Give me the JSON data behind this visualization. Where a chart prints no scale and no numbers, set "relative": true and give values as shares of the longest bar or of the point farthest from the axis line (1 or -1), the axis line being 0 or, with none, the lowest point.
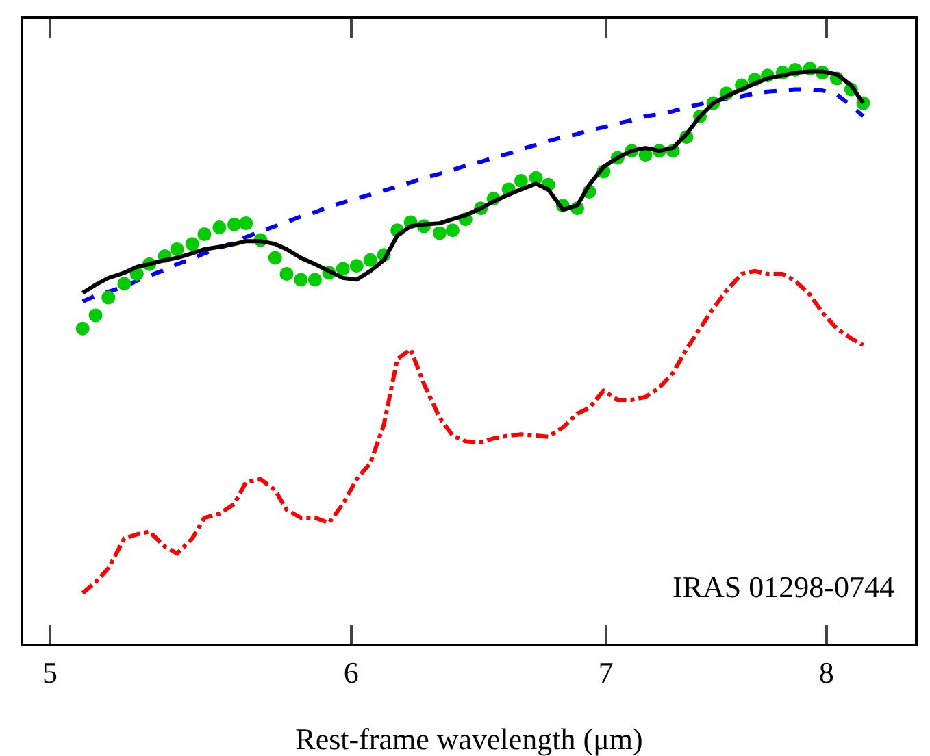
{
  "chart_data": {
    "type": "line",
    "xlabel": "Rest-frame wavelength (μm)",
    "log": "x",
    "relative": true,
    "x": [
      5.1,
      5.14,
      5.18,
      5.23,
      5.27,
      5.31,
      5.36,
      5.4,
      5.45,
      5.49,
      5.54,
      5.59,
      5.63,
      5.68,
      5.73,
      5.77,
      5.82,
      5.87,
      5.92,
      5.97,
      6.02,
      6.07,
      6.12,
      6.17,
      6.22,
      6.27,
      6.33,
      6.38,
      6.43,
      6.49,
      6.54,
      6.6,
      6.65,
      6.71,
      6.76,
      6.82,
      6.88,
      6.93,
      6.99,
      7.05,
      7.11,
      7.17,
      7.23,
      7.29,
      7.35,
      7.41,
      7.47,
      7.53,
      7.6,
      7.66,
      7.72,
      7.79,
      7.85,
      7.92,
      7.98,
      8.05,
      8.12,
      8.18
    ],
    "xlim": [
      4.92,
      8.44
    ],
    "xticks": [
      5,
      6,
      7,
      8
    ],
    "tick_labels": "x",
    "series": [
      {
        "type": "line",
        "color": "#0000ff",
        "line_style": "dashed",
        "marker": "none",
        "values": [
          0.595,
          0.605,
          0.612,
          0.621,
          0.631,
          0.64,
          0.65,
          0.66,
          0.669,
          0.679,
          0.688,
          0.698,
          0.707,
          0.717,
          0.726,
          0.733,
          0.743,
          0.75,
          0.76,
          0.767,
          0.774,
          0.781,
          0.788,
          0.795,
          0.802,
          0.81,
          0.817,
          0.824,
          0.831,
          0.838,
          0.845,
          0.852,
          0.86,
          0.867,
          0.874,
          0.881,
          0.886,
          0.893,
          0.898,
          0.905,
          0.91,
          0.917,
          0.921,
          0.926,
          0.933,
          0.938,
          0.943,
          0.948,
          0.952,
          0.957,
          0.96,
          0.962,
          0.964,
          0.964,
          0.962,
          0.955,
          0.936,
          0.917
        ]
      },
      {
        "type": "line",
        "color": "#ff0000",
        "line_style": "dashdot",
        "marker": "none",
        "values": [
          0.088,
          0.107,
          0.131,
          0.183,
          0.19,
          0.195,
          0.169,
          0.157,
          0.183,
          0.219,
          0.226,
          0.243,
          0.281,
          0.286,
          0.267,
          0.233,
          0.219,
          0.219,
          0.21,
          0.243,
          0.286,
          0.314,
          0.381,
          0.495,
          0.512,
          0.452,
          0.393,
          0.362,
          0.352,
          0.35,
          0.357,
          0.362,
          0.364,
          0.362,
          0.36,
          0.376,
          0.4,
          0.41,
          0.44,
          0.424,
          0.424,
          0.429,
          0.445,
          0.471,
          0.512,
          0.548,
          0.583,
          0.614,
          0.643,
          0.648,
          0.643,
          0.643,
          0.631,
          0.607,
          0.576,
          0.548,
          0.531,
          0.519
        ]
      },
      {
        "type": "scatter",
        "color": "#00cc00",
        "marker": "circle",
        "values": [
          0.548,
          0.571,
          0.602,
          0.626,
          0.643,
          0.66,
          0.674,
          0.686,
          0.695,
          0.712,
          0.724,
          0.729,
          0.731,
          0.702,
          0.671,
          0.643,
          0.633,
          0.633,
          0.645,
          0.652,
          0.657,
          0.667,
          0.676,
          0.719,
          0.733,
          0.726,
          0.714,
          0.719,
          0.738,
          0.757,
          0.774,
          0.79,
          0.805,
          0.81,
          0.798,
          0.762,
          0.757,
          0.786,
          0.821,
          0.845,
          0.857,
          0.85,
          0.857,
          0.857,
          0.881,
          0.917,
          0.94,
          0.957,
          0.971,
          0.981,
          0.988,
          0.993,
          0.998,
          1.0,
          0.993,
          0.983,
          0.964,
          0.94
        ]
      },
      {
        "type": "line",
        "color": "#000000",
        "line_style": "solid",
        "marker": "none",
        "values": [
          0.61,
          0.624,
          0.636,
          0.645,
          0.655,
          0.66,
          0.667,
          0.671,
          0.679,
          0.686,
          0.69,
          0.695,
          0.7,
          0.7,
          0.695,
          0.686,
          0.671,
          0.66,
          0.648,
          0.636,
          0.633,
          0.648,
          0.667,
          0.71,
          0.726,
          0.729,
          0.731,
          0.738,
          0.745,
          0.757,
          0.769,
          0.781,
          0.79,
          0.8,
          0.79,
          0.755,
          0.762,
          0.798,
          0.829,
          0.845,
          0.857,
          0.862,
          0.857,
          0.862,
          0.886,
          0.917,
          0.94,
          0.952,
          0.964,
          0.974,
          0.983,
          0.988,
          0.993,
          0.995,
          0.995,
          0.99,
          0.971,
          0.94
        ]
      }
    ],
    "annotations": [
      "IRAS 01298-0744"
    ]
  }
}
